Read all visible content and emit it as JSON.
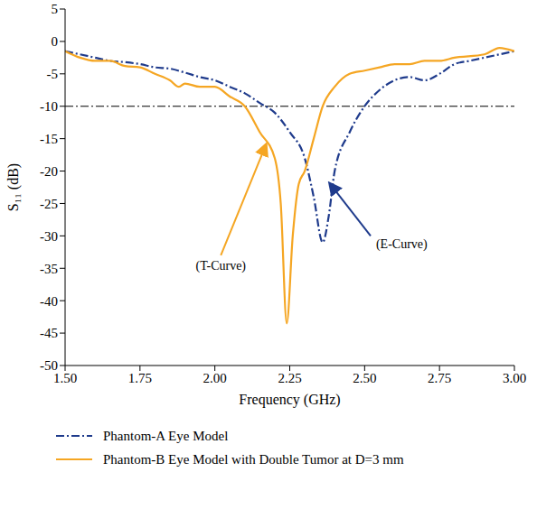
{
  "chart_data": {
    "type": "line",
    "x_label": "Frequency (GHz)",
    "y_label": "S₁₁ (dB)",
    "xlim": [
      1.5,
      3.0
    ],
    "xticks": [
      {
        "value": 1.5,
        "label": "1.50"
      },
      {
        "value": 1.75,
        "label": "1.75"
      },
      {
        "value": 2.0,
        "label": "2.00"
      },
      {
        "value": 2.25,
        "label": "2.25"
      },
      {
        "value": 2.5,
        "label": "2.50"
      },
      {
        "value": 2.75,
        "label": "2.75"
      },
      {
        "value": 3.0,
        "label": "3.00"
      }
    ],
    "ylim": [
      -50,
      5
    ],
    "yticks": [
      -50,
      -45,
      -40,
      -35,
      -30,
      -25,
      -20,
      -15,
      -10,
      -5,
      0,
      5
    ],
    "threshold": -10,
    "grid": false,
    "legend": "bottom",
    "annotations": [
      "(T-Curve)",
      "(E-Curve)"
    ],
    "series": [
      {
        "name": "Phantom-A Eye Model",
        "color": "#1f3b8c",
        "line_style": "dashdot",
        "x": [
          1.5,
          1.55,
          1.6,
          1.65,
          1.7,
          1.75,
          1.8,
          1.85,
          1.9,
          1.95,
          2.0,
          2.05,
          2.1,
          2.15,
          2.2,
          2.25,
          2.3,
          2.33,
          2.36,
          2.38,
          2.4,
          2.45,
          2.5,
          2.55,
          2.6,
          2.65,
          2.7,
          2.75,
          2.8,
          2.85,
          2.9,
          2.95,
          3.0
        ],
        "values": [
          -1.5,
          -2,
          -2.5,
          -3,
          -3.2,
          -3.5,
          -4,
          -4.2,
          -4.8,
          -5.5,
          -6,
          -7,
          -8,
          -9.5,
          -11,
          -14,
          -18,
          -24,
          -31,
          -27,
          -20,
          -14,
          -10,
          -7.5,
          -6,
          -5.5,
          -6,
          -5,
          -3.5,
          -3,
          -2.5,
          -2,
          -1.5
        ]
      },
      {
        "name": "Phantom-B Eye Model with Double Tumor at D=3 mm",
        "color": "#f5a623",
        "line_style": "solid",
        "x": [
          1.5,
          1.55,
          1.6,
          1.65,
          1.7,
          1.75,
          1.8,
          1.85,
          1.88,
          1.9,
          1.95,
          2.0,
          2.05,
          2.1,
          2.15,
          2.2,
          2.22,
          2.24,
          2.26,
          2.28,
          2.3,
          2.33,
          2.36,
          2.4,
          2.45,
          2.5,
          2.55,
          2.6,
          2.65,
          2.7,
          2.75,
          2.8,
          2.9,
          2.95,
          3.0
        ],
        "values": [
          -1.5,
          -2.5,
          -3,
          -3,
          -3.8,
          -4,
          -5,
          -6,
          -7,
          -6.5,
          -7,
          -7,
          -8.5,
          -10,
          -14,
          -18,
          -25,
          -43.5,
          -30,
          -22,
          -20,
          -15,
          -10,
          -7,
          -5,
          -4.5,
          -4,
          -3.5,
          -3.5,
          -3,
          -3,
          -2.5,
          -2,
          -1,
          -1.5
        ]
      }
    ]
  }
}
